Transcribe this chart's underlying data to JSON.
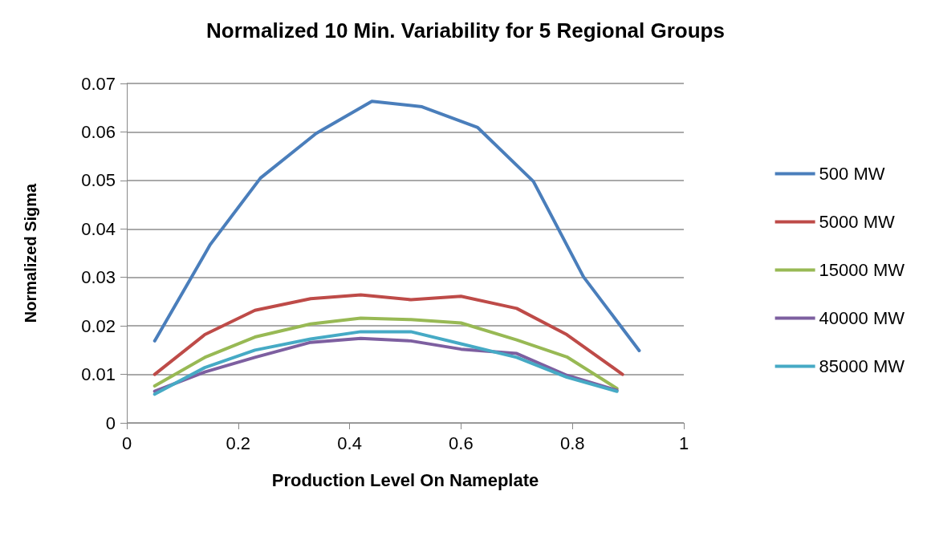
{
  "chart_data": {
    "type": "line",
    "title": "Normalized 10 Min. Variability for 5 Regional Groups",
    "xlabel": "Production Level On Nameplate",
    "ylabel": "Normalized Sigma",
    "xlim": [
      0,
      1
    ],
    "xticks": [
      0,
      0.2,
      0.4,
      0.6,
      0.8,
      1
    ],
    "ylim": [
      0,
      0.07
    ],
    "yticks": [
      0,
      0.01,
      0.02,
      0.03,
      0.04,
      0.05,
      0.06,
      0.07
    ],
    "grid": "y",
    "legend": "right",
    "marker": "none",
    "line_style": "solid",
    "series": [
      {
        "name": "500 MW",
        "color": "#4a7ebb",
        "x": [
          0.05,
          0.15,
          0.24,
          0.34,
          0.44,
          0.53,
          0.63,
          0.73,
          0.82,
          0.92
        ],
        "values": [
          0.0169,
          0.0368,
          0.0505,
          0.0597,
          0.0663,
          0.0652,
          0.0609,
          0.0498,
          0.0301,
          0.0149
        ]
      },
      {
        "name": "5000 MW",
        "color": "#be4b48",
        "x": [
          0.05,
          0.14,
          0.23,
          0.33,
          0.42,
          0.51,
          0.6,
          0.7,
          0.79,
          0.89
        ],
        "values": [
          0.01,
          0.0182,
          0.0232,
          0.0256,
          0.0264,
          0.0254,
          0.0261,
          0.0236,
          0.0182,
          0.01
        ]
      },
      {
        "name": "15000 MW",
        "color": "#98b954",
        "x": [
          0.05,
          0.14,
          0.23,
          0.33,
          0.42,
          0.51,
          0.6,
          0.7,
          0.79,
          0.88
        ],
        "values": [
          0.0076,
          0.0135,
          0.0177,
          0.0204,
          0.0216,
          0.0213,
          0.0206,
          0.0171,
          0.0136,
          0.0071
        ]
      },
      {
        "name": "40000 MW",
        "color": "#7d5fa0",
        "x": [
          0.05,
          0.14,
          0.23,
          0.33,
          0.42,
          0.51,
          0.6,
          0.7,
          0.79,
          0.88
        ],
        "values": [
          0.0065,
          0.0105,
          0.0135,
          0.0166,
          0.0174,
          0.0169,
          0.0152,
          0.0143,
          0.0098,
          0.0067
        ]
      },
      {
        "name": "85000 MW",
        "color": "#46aac5",
        "x": [
          0.05,
          0.14,
          0.23,
          0.33,
          0.42,
          0.51,
          0.6,
          0.7,
          0.79,
          0.88
        ],
        "values": [
          0.0059,
          0.0114,
          0.015,
          0.0173,
          0.0188,
          0.0188,
          0.0163,
          0.0135,
          0.0094,
          0.0065
        ]
      }
    ]
  }
}
